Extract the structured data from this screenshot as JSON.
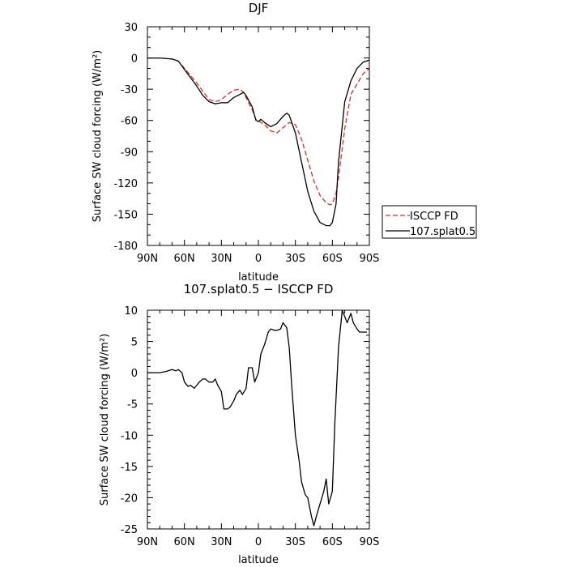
{
  "chart_data": [
    {
      "type": "line",
      "title": "DJF",
      "xlabel": "latitude",
      "ylabel": "Surface SW cloud forcing (W/m²)",
      "xlim": [
        90,
        -90
      ],
      "ylim": [
        -180,
        30
      ],
      "xticks": [
        90,
        60,
        30,
        0,
        -30,
        -60,
        -90
      ],
      "xtick_labels": [
        "90N",
        "60N",
        "30N",
        "0",
        "30S",
        "60S",
        "90S"
      ],
      "yticks": [
        30,
        0,
        -30,
        -60,
        -90,
        -120,
        -150,
        -180
      ],
      "ytick_labels": [
        "30",
        "0",
        "-30",
        "-60",
        "-90",
        "-120",
        "-150",
        "-180"
      ],
      "legend_position": "right",
      "series": [
        {
          "name": "ISCCP FD",
          "color": "#e8292b",
          "dash": "dashed",
          "x": [
            90,
            80,
            70,
            65,
            60,
            55,
            50,
            45,
            40,
            35,
            30,
            25,
            20,
            15,
            12,
            10,
            5,
            2,
            0,
            -2,
            -5,
            -10,
            -15,
            -20,
            -25,
            -30,
            -35,
            -40,
            -45,
            -50,
            -55,
            -58,
            -60,
            -63,
            -65,
            -70,
            -75,
            -80,
            -85,
            -90
          ],
          "y": [
            0,
            0,
            -1,
            -3,
            -10,
            -17,
            -24,
            -32,
            -40,
            -42,
            -40,
            -35,
            -31,
            -30,
            -33,
            -38,
            -50,
            -59,
            -60,
            -62,
            -64,
            -70,
            -72,
            -67,
            -62,
            -64,
            -78,
            -98,
            -118,
            -132,
            -139,
            -141,
            -140,
            -130,
            -115,
            -68,
            -35,
            -25,
            -15,
            -10
          ]
        },
        {
          "name": "107.splat0.5",
          "color": "#000000",
          "dash": "solid",
          "x": [
            90,
            80,
            70,
            65,
            60,
            55,
            50,
            45,
            40,
            35,
            30,
            25,
            20,
            15,
            12,
            10,
            5,
            2,
            0,
            -2,
            -5,
            -10,
            -15,
            -20,
            -23,
            -25,
            -30,
            -35,
            -40,
            -45,
            -50,
            -55,
            -58,
            -60,
            -63,
            -65,
            -70,
            -75,
            -80,
            -85,
            -90
          ],
          "y": [
            0,
            0,
            -1,
            -3,
            -11,
            -19,
            -27,
            -36,
            -42,
            -44,
            -43,
            -43,
            -38,
            -35,
            -33,
            -36,
            -47,
            -60,
            -61,
            -59,
            -62,
            -66,
            -63,
            -56,
            -53,
            -55,
            -72,
            -100,
            -128,
            -147,
            -158,
            -161,
            -161,
            -158,
            -140,
            -100,
            -42,
            -22,
            -10,
            -4,
            -2
          ]
        }
      ]
    },
    {
      "type": "line",
      "title": "107.splat0.5 − ISCCP FD",
      "xlabel": "latitude",
      "ylabel": "Surface SW cloud forcing (W/m²)",
      "xlim": [
        90,
        -90
      ],
      "ylim": [
        -25,
        10
      ],
      "xticks": [
        90,
        60,
        30,
        0,
        -30,
        -60,
        -90
      ],
      "xtick_labels": [
        "90N",
        "60N",
        "30N",
        "0",
        "30S",
        "60S",
        "90S"
      ],
      "yticks": [
        10,
        5,
        0,
        -5,
        -10,
        -15,
        -20,
        -25
      ],
      "ytick_labels": [
        "10",
        "5",
        "0",
        "-5",
        "-10",
        "-15",
        "-20",
        "-25"
      ],
      "series": [
        {
          "name": "",
          "color": "#000000",
          "dash": "solid",
          "x": [
            90,
            80,
            75,
            70,
            67,
            65,
            62,
            60,
            57,
            55,
            52,
            50,
            48,
            45,
            43,
            40,
            37,
            35,
            33,
            30,
            28,
            25,
            23,
            20,
            18,
            15,
            13,
            10,
            8,
            5,
            3,
            0,
            -2,
            -5,
            -8,
            -10,
            -13,
            -15,
            -18,
            -20,
            -23,
            -25,
            -27,
            -30,
            -33,
            -35,
            -38,
            -40,
            -43,
            -45,
            -47,
            -50,
            -53,
            -55,
            -57,
            -60,
            -62,
            -65,
            -68,
            -70,
            -72,
            -75,
            -77,
            -80,
            -82,
            -85,
            -88
          ],
          "y": [
            0,
            0,
            0.2,
            0.5,
            0.3,
            0.5,
            0,
            -1.5,
            -2.2,
            -2,
            -2.5,
            -2,
            -1.5,
            -1,
            -1,
            -1.5,
            -1.5,
            -1,
            -2,
            -3,
            -5.8,
            -5.8,
            -5.5,
            -4.5,
            -3.5,
            -2.8,
            -3.5,
            -2.5,
            0.8,
            0.8,
            -1.5,
            0,
            3,
            4.5,
            6.5,
            7,
            6.8,
            6.8,
            7,
            8,
            7.2,
            4,
            -2,
            -10,
            -14,
            -17.5,
            -19.5,
            -20,
            -23,
            -24.5,
            -23,
            -21,
            -19,
            -17,
            -21,
            -19,
            -8,
            4,
            10,
            9,
            8,
            9.5,
            8,
            7,
            6.5,
            6.5,
            6.5
          ]
        }
      ]
    }
  ]
}
